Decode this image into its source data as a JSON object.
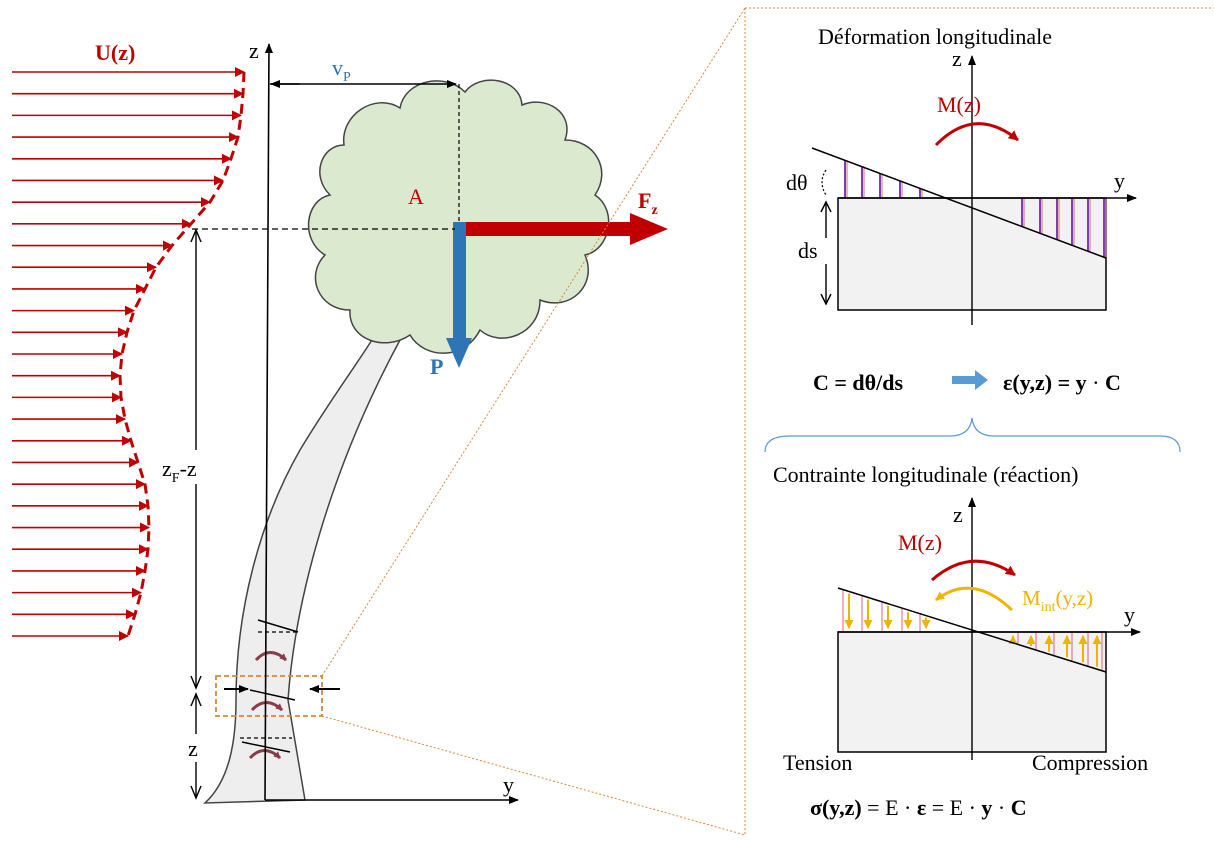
{
  "colors": {
    "wind": "#c00000",
    "weight": "#2e75b6",
    "crown": "#dbe9cf",
    "trunk": "#eeeeee",
    "internal_moment": "#f0b400",
    "zoom_frame": "#d9883a",
    "strain_hatch": "#7a3fb0"
  },
  "tree": {
    "wind_label": "U(z)",
    "z_axis": "z",
    "y_axis": "y",
    "vp_main": "v",
    "vp_sub": "P",
    "crown_label": "A",
    "force_main": "F",
    "force_sub": "z",
    "weight_label": "P",
    "height_main": "z",
    "height_sub": "F",
    "height_tail": "-z",
    "z_small": "z",
    "wind_arrow_count": 27,
    "wind_profile_offsets": [
      0,
      1,
      3,
      6,
      13,
      21,
      34,
      53,
      72,
      88,
      99,
      110,
      117,
      122,
      124,
      123,
      119,
      113,
      106,
      99,
      96,
      95,
      96,
      99,
      103,
      109,
      116
    ]
  },
  "deformation": {
    "title": "Déformation longitudinale",
    "z_axis": "z",
    "y_axis": "y",
    "moment_label": "M(z)",
    "dtheta_label": "dθ",
    "ds_label": "ds"
  },
  "relation": {
    "left": "C = dθ/ds",
    "right_bold_1": "ε(y,z) = y",
    "right_dot": " · ",
    "right_bold_2": "C"
  },
  "stress": {
    "title": "Contrainte longitudinale (réaction)",
    "z_axis": "z",
    "y_axis": "y",
    "moment_label": "M(z)",
    "internal_main": "M",
    "internal_sub": "int",
    "internal_tail": "(y,z)",
    "tension_label": "Tension",
    "compression_label": "Compression"
  },
  "formula": {
    "sigma": "σ(y,z)",
    "eq1": " = E · ",
    "eps": "ε",
    "eq2": "  = E · ",
    "y": "y",
    "dot": " · ",
    "c": "C"
  }
}
